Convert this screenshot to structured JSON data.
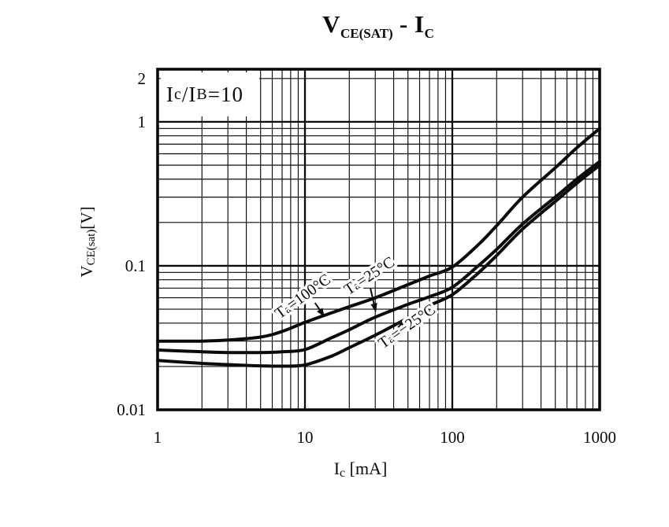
{
  "title": {
    "v": "V",
    "v_sub": "CE(SAT)",
    "sep": " - ",
    "i": "I",
    "i_sub": "C"
  },
  "annotation": {
    "p1": "I",
    "s1": "c",
    "p2": "/I",
    "s2": "B",
    "p3": "=10"
  },
  "x_axis": {
    "label_main": "I",
    "label_sub": "c",
    "label_unit": " [mA]",
    "ticks": [
      {
        "v": 1,
        "label": "1"
      },
      {
        "v": 10,
        "label": "10"
      },
      {
        "v": 100,
        "label": "100"
      },
      {
        "v": 1000,
        "label": "1000"
      }
    ]
  },
  "y_axis": {
    "label_main": "V",
    "label_sub": "CE(sat)",
    "label_unit": "[V]",
    "ticks": [
      {
        "v": 2,
        "label": "2"
      },
      {
        "v": 1,
        "label": "1"
      },
      {
        "v": 0.1,
        "label": "0.1"
      },
      {
        "v": 0.01,
        "label": "0.01"
      }
    ]
  },
  "chart_data": {
    "type": "line",
    "title": "VCE(SAT) - IC",
    "xlabel": "Ic [mA]",
    "ylabel": "VCE(sat) [V]",
    "condition": "Ic/IB=10",
    "x_scale": "log",
    "y_scale": "log",
    "xlim": [
      1,
      1000
    ],
    "ylim": [
      0.01,
      2.32
    ],
    "grid": "log-log minor grid on",
    "line_color": "#0a0a0a",
    "series": [
      {
        "name": "Ta=100°C",
        "x": [
          1,
          2,
          3,
          5,
          7,
          10,
          15,
          20,
          30,
          50,
          70,
          100,
          150,
          200,
          300,
          500,
          700,
          1000
        ],
        "y": [
          0.03,
          0.03,
          0.0305,
          0.032,
          0.035,
          0.0405,
          0.047,
          0.052,
          0.06,
          0.074,
          0.085,
          0.098,
          0.14,
          0.19,
          0.3,
          0.48,
          0.66,
          0.9
        ],
        "label": {
          "text": "Ta=100°C",
          "x": 10.1,
          "y": 0.0575,
          "angle": -36
        },
        "arrow": {
          "from": [
            11.7,
            0.0553
          ],
          "to": [
            13.6,
            0.0441
          ]
        }
      },
      {
        "name": "Ta=25°C",
        "x": [
          1,
          2,
          3,
          5,
          7,
          10,
          15,
          20,
          30,
          50,
          70,
          100,
          150,
          200,
          300,
          500,
          700,
          1000
        ],
        "y": [
          0.026,
          0.0253,
          0.025,
          0.025,
          0.0253,
          0.0262,
          0.0315,
          0.036,
          0.044,
          0.054,
          0.061,
          0.071,
          0.1,
          0.13,
          0.195,
          0.3,
          0.4,
          0.53
        ],
        "label": {
          "text": "Ta=25°C",
          "x": 28.5,
          "y": 0.0797,
          "angle": -33
        },
        "arrow": {
          "from": [
            27.8,
            0.07
          ],
          "to": [
            30.3,
            0.0476
          ]
        }
      },
      {
        "name": "Ta=−25°C",
        "x": [
          1,
          2,
          3,
          5,
          7,
          10,
          15,
          20,
          30,
          50,
          70,
          100,
          150,
          200,
          300,
          500,
          700,
          1000
        ],
        "y": [
          0.022,
          0.021,
          0.0206,
          0.0202,
          0.0201,
          0.0205,
          0.0235,
          0.027,
          0.033,
          0.0435,
          0.053,
          0.063,
          0.089,
          0.118,
          0.18,
          0.28,
          0.375,
          0.5
        ],
        "label": {
          "text": "Ta=−25°C",
          "x": 51.4,
          "y": 0.0356,
          "angle": -35
        },
        "arrow": {
          "from": [
            37.8,
            0.0322
          ],
          "to": [
            48.9,
            0.0436
          ]
        }
      }
    ]
  }
}
